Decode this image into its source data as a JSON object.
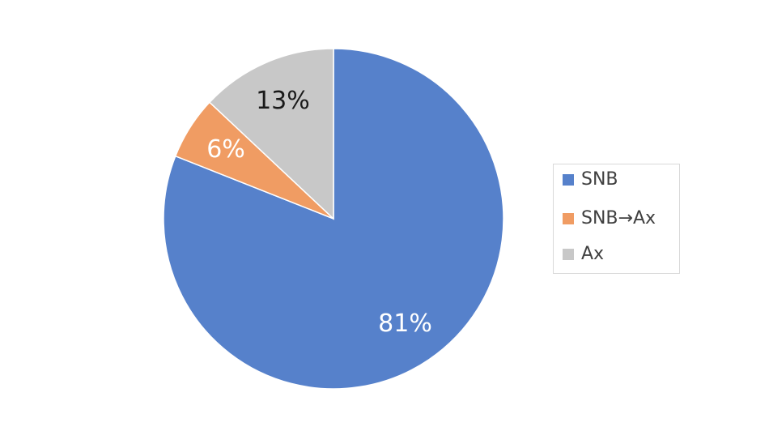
{
  "chart_data": {
    "type": "pie",
    "categories": [
      "SNB",
      "SNB→Ax",
      "Ax"
    ],
    "values": [
      81,
      6,
      13
    ],
    "value_labels": [
      "81%",
      "6%",
      "13%"
    ],
    "colors": [
      "#5681cb",
      "#f09c63",
      "#c8c8c8"
    ],
    "label_colors": [
      "#ffffff",
      "#ffffff",
      "#1a1a1a"
    ],
    "legend": "right"
  }
}
